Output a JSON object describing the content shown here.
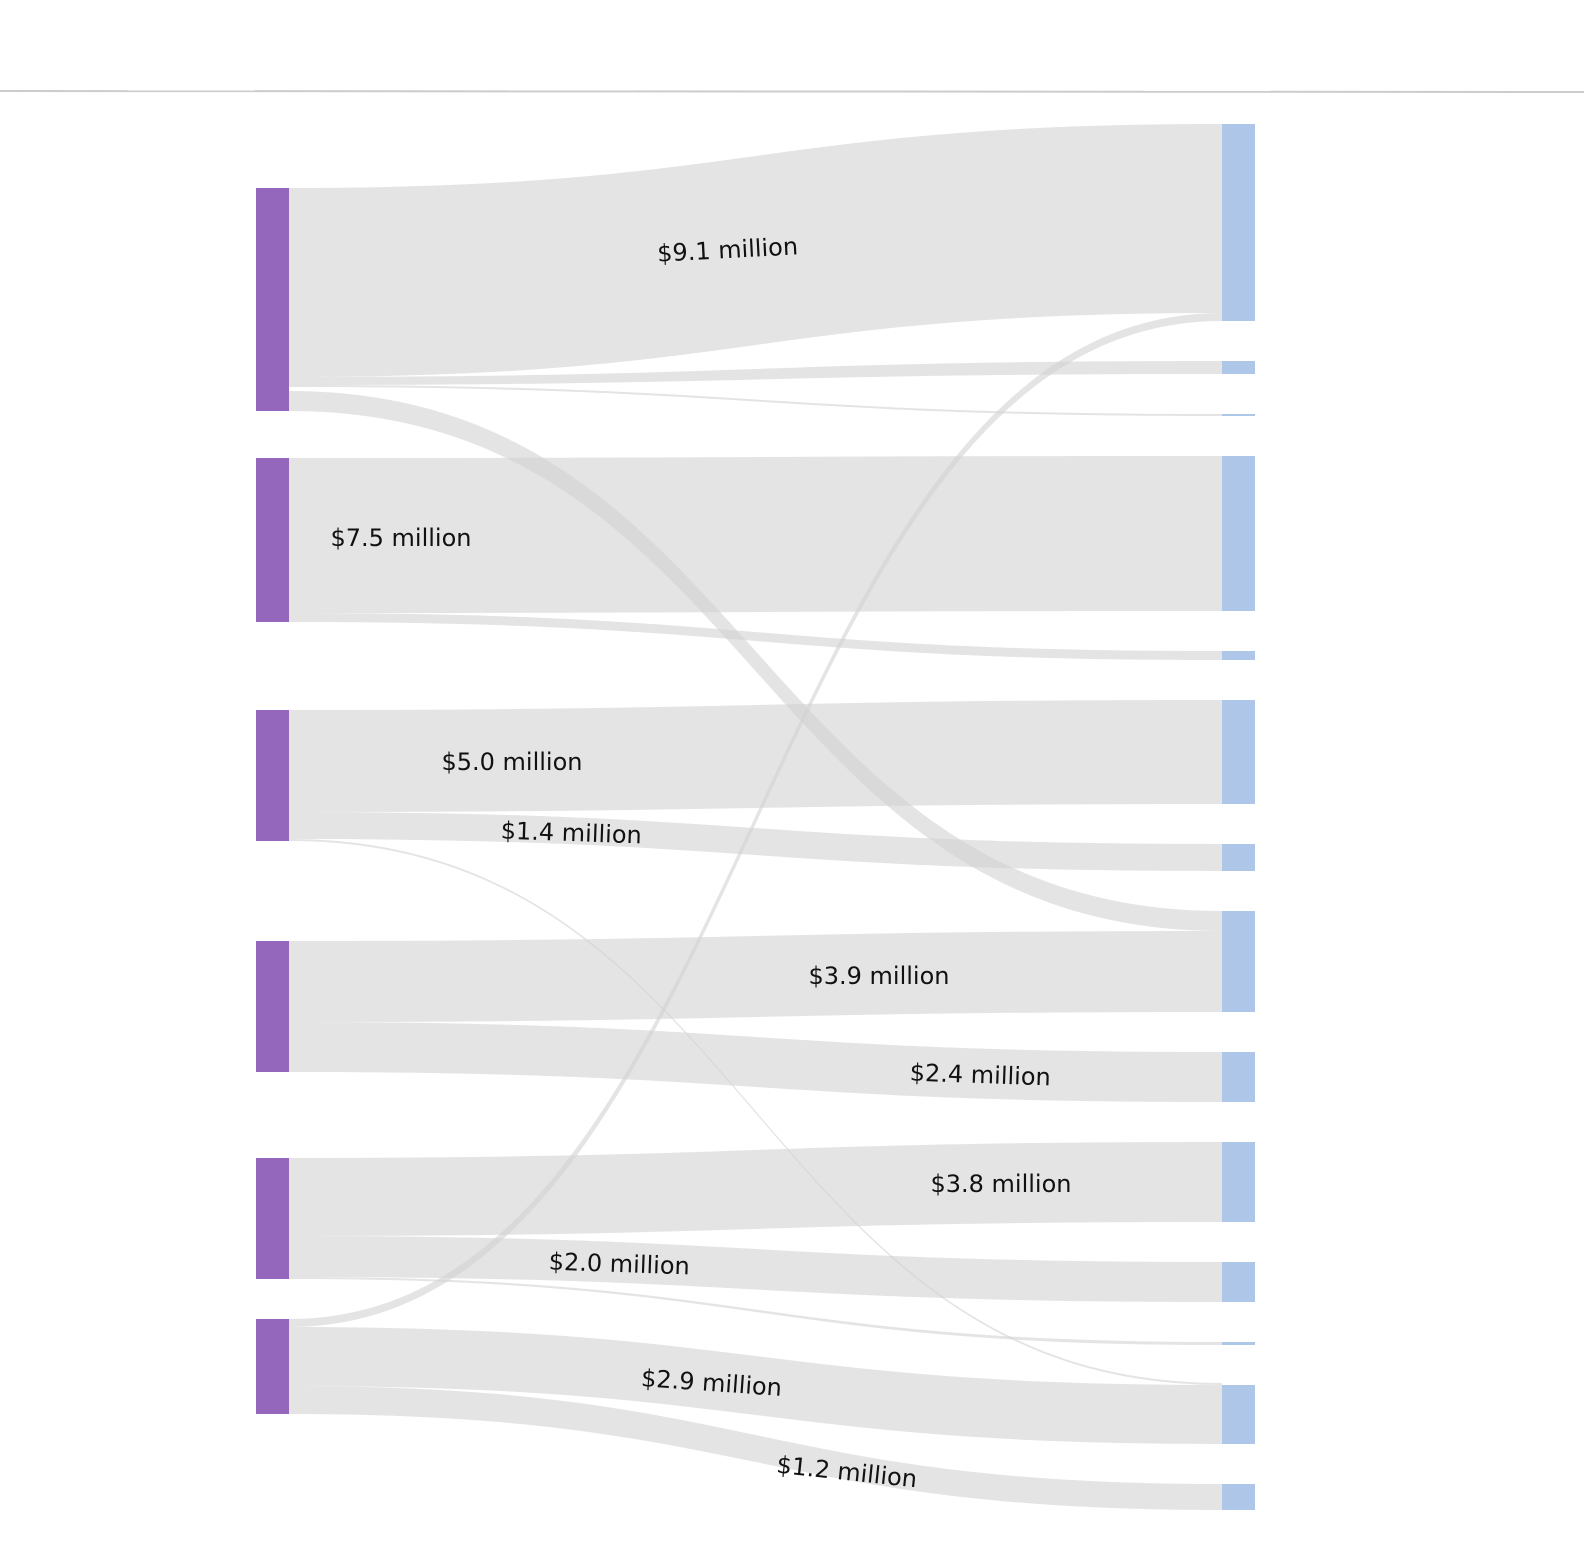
{
  "chart_data": {
    "type": "sankey",
    "source_color": "#9467bd",
    "target_color": "#aec7e8",
    "link_color": "#d2d2d2",
    "sources": [
      "s1",
      "s2",
      "s3",
      "s4",
      "s5",
      "s6"
    ],
    "targets": [
      "t1",
      "t2",
      "t3",
      "t4",
      "t5",
      "t6",
      "t7",
      "t8",
      "t9",
      "t10",
      "t11",
      "t12",
      "t13"
    ],
    "links": [
      {
        "source": "s1",
        "target": "t1",
        "value": 9.1,
        "label": "$9.1 million"
      },
      {
        "source": "s1",
        "target": "t2",
        "value": 0.4,
        "label": ""
      },
      {
        "source": "s1",
        "target": "t3",
        "value": 0.05,
        "label": ""
      },
      {
        "source": "s1",
        "target": "t8",
        "value": 0.9,
        "label": ""
      },
      {
        "source": "s2",
        "target": "t4",
        "value": 7.5,
        "label": "$7.5 million"
      },
      {
        "source": "s2",
        "target": "t5",
        "value": 0.4,
        "label": ""
      },
      {
        "source": "s3",
        "target": "t6",
        "value": 5.0,
        "label": "$5.0 million"
      },
      {
        "source": "s3",
        "target": "t7",
        "value": 1.4,
        "label": "$1.4 million"
      },
      {
        "source": "s3",
        "target": "t12",
        "value": 0.05,
        "label": ""
      },
      {
        "source": "s4",
        "target": "t8",
        "value": 3.9,
        "label": "$3.9 million"
      },
      {
        "source": "s4",
        "target": "t9",
        "value": 2.4,
        "label": "$2.4 million"
      },
      {
        "source": "s5",
        "target": "t10",
        "value": 3.8,
        "label": "$3.8 million"
      },
      {
        "source": "s5",
        "target": "t11",
        "value": 2.0,
        "label": "$2.0 million"
      },
      {
        "source": "s5",
        "target": "t12",
        "value": 0.05,
        "label": ""
      },
      {
        "source": "s6",
        "target": "t1",
        "value": 0.4,
        "label": ""
      },
      {
        "source": "s6",
        "target": "t13",
        "value": 2.9,
        "label": "$2.9 million"
      },
      {
        "source": "s6",
        "target": "t14",
        "value": 1.2,
        "label": "$1.2 million"
      }
    ]
  }
}
